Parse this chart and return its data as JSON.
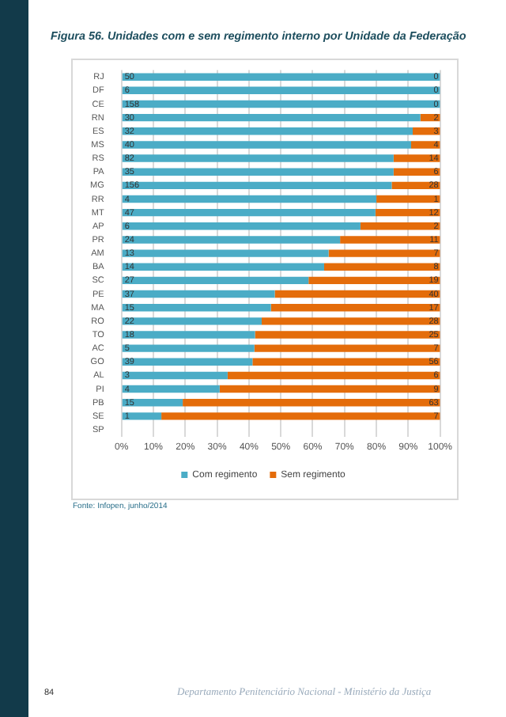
{
  "chart_data": {
    "type": "bar",
    "orientation": "horizontal",
    "stacked": true,
    "title": "Figura 56. Unidades com e sem regimento interno por Unidade da Federação",
    "categories": [
      "RJ",
      "DF",
      "CE",
      "RN",
      "ES",
      "MS",
      "RS",
      "PA",
      "MG",
      "RR",
      "MT",
      "AP",
      "PR",
      "AM",
      "BA",
      "SC",
      "PE",
      "MA",
      "RO",
      "TO",
      "AC",
      "GO",
      "AL",
      "PI",
      "PB",
      "SE",
      "SP"
    ],
    "series": [
      {
        "name": "Com regimento",
        "color": "#4bacc6",
        "values": [
          100,
          100,
          100,
          93.8,
          91.4,
          90.9,
          85.4,
          85.4,
          84.8,
          80,
          79.7,
          75,
          68.6,
          65,
          63.6,
          58.7,
          48.1,
          46.9,
          44,
          41.9,
          41.7,
          41.1,
          33.3,
          30.8,
          19.2,
          12.5,
          null
        ]
      },
      {
        "name": "Sem regimento",
        "color": "#e46c0a",
        "values": [
          0,
          0,
          0,
          6.2,
          8.6,
          9.1,
          14.6,
          14.6,
          15.2,
          20,
          20.3,
          25,
          31.4,
          35,
          36.4,
          41.3,
          51.9,
          53.1,
          56,
          58.1,
          58.3,
          58.9,
          66.7,
          69.2,
          80.8,
          87.5,
          null
        ]
      }
    ],
    "xlim": [
      0,
      100
    ],
    "xticks": [
      {
        "value": 0,
        "label": "0%"
      },
      {
        "value": 10,
        "label": "10%"
      },
      {
        "value": 20,
        "label": "20%"
      },
      {
        "value": 30,
        "label": "30%"
      },
      {
        "value": 40,
        "label": "40%"
      },
      {
        "value": 50,
        "label": "50%"
      },
      {
        "value": 60,
        "label": "60%"
      },
      {
        "value": 70,
        "label": "70%"
      },
      {
        "value": 80,
        "label": "80%"
      },
      {
        "value": 90,
        "label": "90%"
      },
      {
        "value": 100,
        "label": "100%"
      }
    ],
    "grid": "x",
    "legend": "bottom",
    "annotations": [
      "Fonte: Infopen, junho/2014",
      "84",
      "Departamento Penitenciário Nacional - Ministério da Justiça",
      {
        "text": "50",
        "y": "RJ"
      },
      {
        "text": "0",
        "y": "RJ"
      },
      {
        "text": "6",
        "y": "DF"
      },
      {
        "text": "0",
        "y": "DF"
      },
      {
        "text": "158",
        "y": "CE"
      },
      {
        "text": "0",
        "y": "CE"
      },
      {
        "text": "30",
        "y": "RN"
      },
      {
        "text": "2",
        "y": "RN"
      },
      {
        "text": "32",
        "y": "ES"
      },
      {
        "text": "3",
        "y": "ES"
      },
      {
        "text": "40",
        "y": "MS"
      },
      {
        "text": "4",
        "y": "MS"
      },
      {
        "text": "82",
        "y": "RS"
      },
      {
        "text": "14",
        "y": "RS"
      },
      {
        "text": "35",
        "y": "PA"
      },
      {
        "text": "6",
        "y": "PA"
      },
      {
        "text": "156",
        "y": "MG"
      },
      {
        "text": "28",
        "y": "MG"
      },
      {
        "text": "4",
        "y": "RR"
      },
      {
        "text": "1",
        "y": "RR"
      },
      {
        "text": "47",
        "y": "MT"
      },
      {
        "text": "12",
        "y": "MT"
      },
      {
        "text": "6",
        "y": "AP"
      },
      {
        "text": "2",
        "y": "AP"
      },
      {
        "text": "24",
        "y": "PR"
      },
      {
        "text": "11",
        "y": "PR"
      },
      {
        "text": "13",
        "y": "AM"
      },
      {
        "text": "7",
        "y": "AM"
      },
      {
        "text": "14",
        "y": "BA"
      },
      {
        "text": "8",
        "y": "BA"
      },
      {
        "text": "27",
        "y": "SC"
      },
      {
        "text": "19",
        "y": "SC"
      },
      {
        "text": "37",
        "y": "PE"
      },
      {
        "text": "40",
        "y": "PE"
      },
      {
        "text": "15",
        "y": "MA"
      },
      {
        "text": "17",
        "y": "MA"
      },
      {
        "text": "22",
        "y": "RO"
      },
      {
        "text": "28",
        "y": "RO"
      },
      {
        "text": "18",
        "y": "TO"
      },
      {
        "text": "25",
        "y": "TO"
      },
      {
        "text": "5",
        "y": "AC"
      },
      {
        "text": "7",
        "y": "AC"
      },
      {
        "text": "39",
        "y": "GO"
      },
      {
        "text": "56",
        "y": "GO"
      },
      {
        "text": "3",
        "y": "AL"
      },
      {
        "text": "6",
        "y": "AL"
      },
      {
        "text": "4",
        "y": "PI"
      },
      {
        "text": "9",
        "y": "PI"
      },
      {
        "text": "15",
        "y": "PB"
      },
      {
        "text": "63",
        "y": "PB"
      },
      {
        "text": "1",
        "y": "SE"
      },
      {
        "text": "7",
        "y": "SE"
      }
    ]
  }
}
